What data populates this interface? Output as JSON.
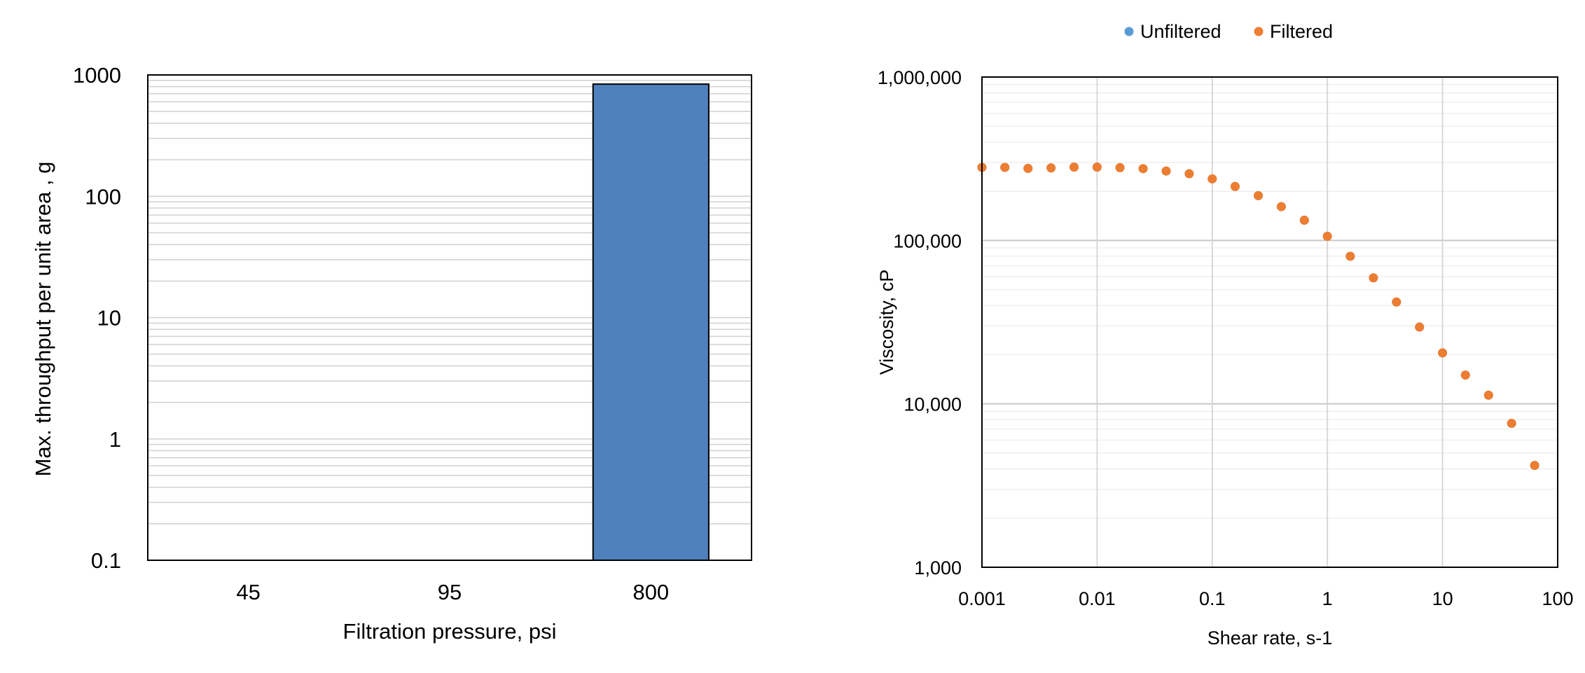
{
  "chart_data": [
    {
      "type": "bar",
      "title": "",
      "xlabel": "Filtration pressure, psi",
      "ylabel": "Max. throughput per unit area , g",
      "yscale": "log",
      "ylim": [
        0.1,
        1000
      ],
      "yticks": [
        "0.1",
        "1",
        "10",
        "100",
        "1000"
      ],
      "categories": [
        "45",
        "95",
        "800"
      ],
      "values": [
        null,
        null,
        840
      ],
      "bar_color": "#4F81BD",
      "grid": true
    },
    {
      "type": "scatter",
      "title": "",
      "xlabel": "Shear rate, s-1",
      "ylabel": "Viscosity, cP",
      "xscale": "log",
      "yscale": "log",
      "xlim": [
        0.001,
        100
      ],
      "ylim": [
        1000,
        1000000
      ],
      "xticks": [
        "0.001",
        "0.01",
        "0.1",
        "1",
        "10",
        "100"
      ],
      "yticks": [
        "1,000",
        "10,000",
        "100,000",
        "1,000,000"
      ],
      "legend_position": "top",
      "grid": true,
      "series": [
        {
          "name": "Unfiltered",
          "color": "#5B9BD5",
          "x": [
            0.001,
            0.00158,
            0.00251,
            0.00398,
            0.00631,
            0.01,
            0.0158,
            0.0251,
            0.0398,
            0.0631,
            0.1,
            0.158,
            0.251,
            0.398,
            0.631,
            1,
            1.58,
            2.51,
            3.98,
            6.31,
            10,
            15.8,
            25.1,
            39.8,
            63.1
          ],
          "y": [
            280000,
            280000,
            276000,
            278000,
            281000,
            281000,
            279000,
            275000,
            266000,
            256000,
            238000,
            214000,
            188000,
            161000,
            133000,
            106000,
            80000,
            59000,
            42000,
            29500,
            20500,
            15000,
            11300,
            7600,
            4200
          ]
        },
        {
          "name": "Filtered",
          "color": "#ED7D31",
          "x": [
            0.001,
            0.00158,
            0.00251,
            0.00398,
            0.00631,
            0.01,
            0.0158,
            0.0251,
            0.0398,
            0.0631,
            0.1,
            0.158,
            0.251,
            0.398,
            0.631,
            1,
            1.58,
            2.51,
            3.98,
            6.31,
            10,
            15.8,
            25.1,
            39.8,
            63.1
          ],
          "y": [
            280000,
            280000,
            276000,
            278000,
            281000,
            281000,
            279000,
            275000,
            266000,
            256000,
            238000,
            214000,
            188000,
            161000,
            133000,
            106000,
            80000,
            59000,
            42000,
            29500,
            20500,
            15000,
            11300,
            7600,
            4200
          ]
        }
      ]
    }
  ]
}
